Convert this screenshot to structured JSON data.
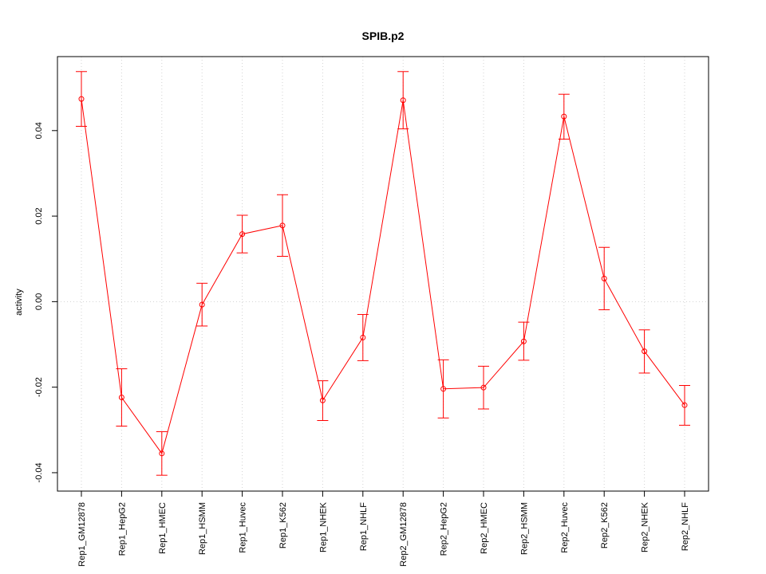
{
  "chart_data": {
    "type": "line",
    "title": "SPIB.p2",
    "xlabel": "",
    "ylabel": "activity",
    "categories": [
      "Rep1_GM12878",
      "Rep1_HepG2",
      "Rep1_HMEC",
      "Rep1_HSMM",
      "Rep1_Huvec",
      "Rep1_K562",
      "Rep1_NHEK",
      "Rep1_NHLF",
      "Rep2_GM12878",
      "Rep2_HepG2",
      "Rep2_HMEC",
      "Rep2_HSMM",
      "Rep2_Huvec",
      "Rep2_K562",
      "Rep2_NHEK",
      "Rep2_NHLF"
    ],
    "values": [
      0.0474,
      -0.0224,
      -0.0355,
      -0.0007,
      0.0158,
      0.0178,
      -0.0231,
      -0.0084,
      0.0471,
      -0.0204,
      -0.0201,
      -0.0093,
      0.0433,
      0.0054,
      -0.0116,
      -0.0242
    ],
    "error_upper": [
      0.0538,
      -0.0157,
      -0.0304,
      0.0043,
      0.0202,
      0.025,
      -0.0185,
      -0.003,
      0.0538,
      -0.0136,
      -0.0151,
      -0.0048,
      0.0485,
      0.0127,
      -0.0066,
      -0.0196
    ],
    "error_lower": [
      0.041,
      -0.0291,
      -0.0406,
      -0.0057,
      0.0114,
      0.0106,
      -0.0278,
      -0.0138,
      0.0404,
      -0.0272,
      -0.0251,
      -0.0137,
      0.038,
      -0.0019,
      -0.0167,
      -0.0289
    ],
    "yticks": [
      -0.04,
      -0.02,
      0.0,
      0.02,
      0.04
    ],
    "ytick_labels": [
      "-0.04",
      "-0.02",
      "0.00",
      "0.02",
      "0.04"
    ],
    "ylim": [
      -0.0443,
      0.0573
    ],
    "grid": true,
    "line_color": "#ff0000",
    "grid_color": "#d3d3d3"
  }
}
